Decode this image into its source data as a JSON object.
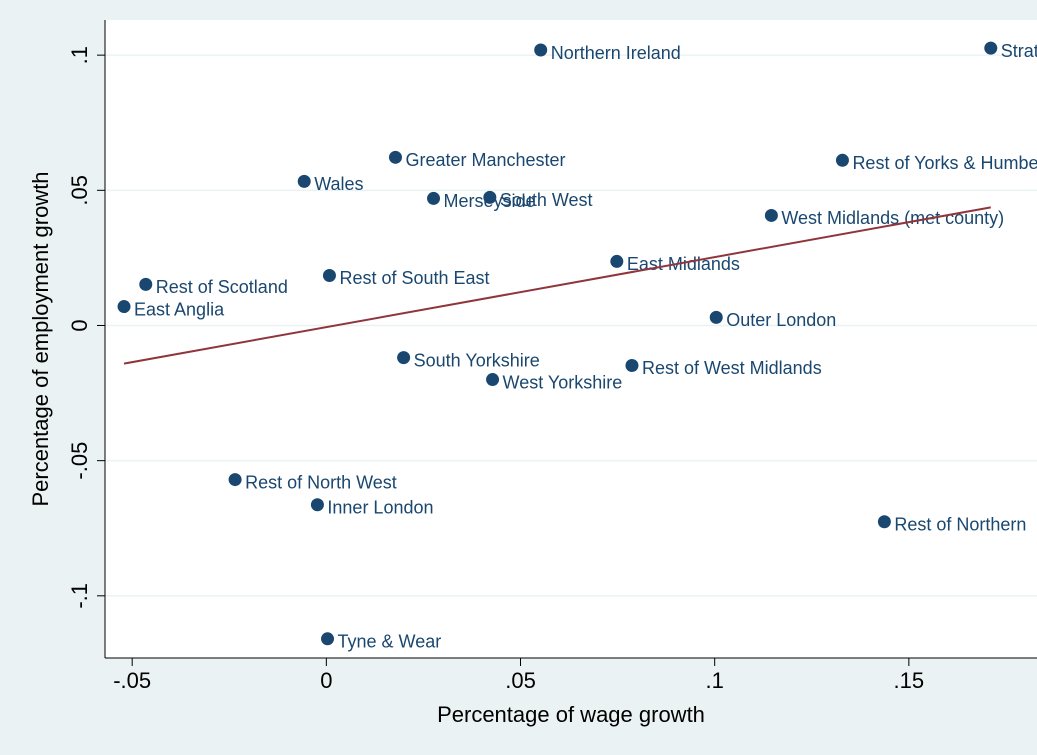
{
  "chart_data": {
    "type": "scatter",
    "xlabel": "Percentage of wage growth",
    "ylabel": "Percentage of employment growth",
    "labels": [
      "Northern Ireland",
      "Strathclyde",
      "Greater Manchester",
      "Wales",
      "Merseyside",
      "South West",
      "Rest of Yorks & Humber",
      "West Midlands (met county)",
      "East Anglia",
      "Rest of Scotland",
      "Rest of South East",
      "East Midlands",
      "Outer London",
      "South Yorkshire",
      "West Yorkshire",
      "Rest of West Midlands",
      "Rest of North West",
      "Inner London",
      "Rest of Northern",
      "Tyne & Wear"
    ],
    "x": [
      0.0552,
      0.1711,
      0.0178,
      -0.0057,
      0.0276,
      0.0421,
      0.1329,
      0.1146,
      -0.0521,
      -0.0465,
      0.0008,
      0.0748,
      0.1004,
      0.0199,
      0.0428,
      0.0787,
      -0.0235,
      -0.0023,
      0.1437,
      0.0003
    ],
    "y": [
      0.1019,
      0.1026,
      0.0622,
      0.0533,
      0.047,
      0.0474,
      0.0611,
      0.0407,
      0.007,
      0.0152,
      0.0185,
      0.0237,
      0.003,
      -0.0119,
      -0.02,
      -0.0148,
      -0.057,
      -0.0663,
      -0.0726,
      -0.1159
    ],
    "color": "#1a476f",
    "fit_line": {
      "x": [
        -0.0521,
        0.1711
      ],
      "y": [
        -0.0141,
        0.0437
      ],
      "color": "#90353b"
    },
    "xlim": [
      -0.057,
      0.183
    ],
    "ylim": [
      -0.123,
      0.113
    ],
    "xticks": [
      {
        "value": -0.05,
        "label": "-.05"
      },
      0,
      {
        "value": 0.05,
        "label": ".05"
      },
      {
        "value": 0.1,
        "label": ".1"
      },
      {
        "value": 0.15,
        "label": ".15"
      }
    ],
    "yticks": [
      {
        "value": -0.1,
        "label": "-.1"
      },
      {
        "value": -0.05,
        "label": "-.05"
      },
      0,
      {
        "value": 0.05,
        "label": ".05"
      },
      {
        "value": 0.1,
        "label": ".1"
      }
    ],
    "grid": true
  }
}
